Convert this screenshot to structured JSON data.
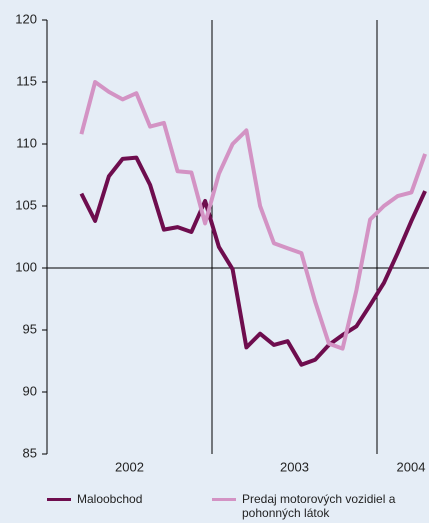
{
  "chart_data": {
    "type": "line",
    "categories": [
      null,
      null,
      null,
      null,
      null,
      null,
      null,
      null,
      null,
      null,
      null,
      null,
      null,
      null,
      null,
      null,
      null,
      null,
      null,
      null,
      null,
      null,
      null,
      null,
      null,
      null
    ],
    "x_groups": [
      {
        "label": "2002",
        "count": 10
      },
      {
        "label": "2003",
        "count": 12
      },
      {
        "label": "2004",
        "count": 4
      }
    ],
    "series": [
      {
        "name": "Maloobchod",
        "color": "#6e0d4e",
        "values": [
          106.0,
          103.8,
          107.4,
          108.8,
          108.9,
          106.7,
          103.1,
          103.3,
          102.9,
          105.4,
          101.7,
          99.9,
          93.6,
          94.7,
          93.8,
          94.1,
          92.2,
          92.6,
          93.8,
          94.6,
          95.3,
          97.0,
          98.8,
          101.2,
          103.8,
          106.2
        ]
      },
      {
        "name": "Predaj motorových vozidiel a pohonných látok",
        "color": "#d393c4",
        "values": [
          110.8,
          115.0,
          114.2,
          113.6,
          114.1,
          111.4,
          111.7,
          107.8,
          107.7,
          103.6,
          107.6,
          110.0,
          111.1,
          105.0,
          102.0,
          101.6,
          101.2,
          97.3,
          93.9,
          93.5,
          98.2,
          103.9,
          105.0,
          105.8,
          106.1,
          109.2
        ]
      }
    ],
    "ylim": [
      85,
      120
    ],
    "yticks": [
      85,
      90,
      95,
      100,
      105,
      110,
      115,
      120
    ],
    "reference_line": 100
  }
}
